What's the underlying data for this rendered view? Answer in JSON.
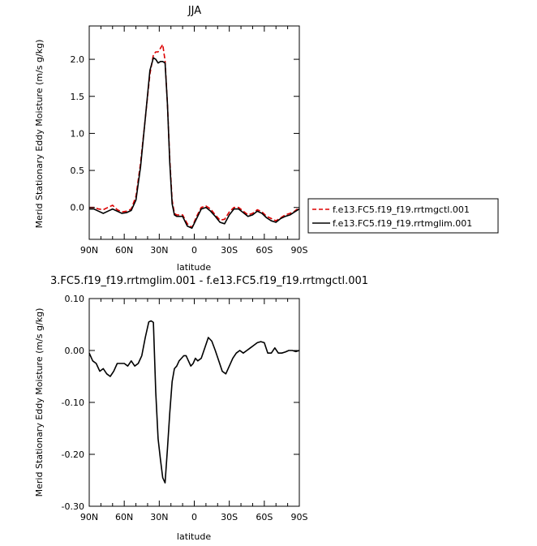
{
  "chart_data": [
    {
      "type": "line",
      "title": "JJA",
      "xlabel": "latitude",
      "ylabel": "Merid Stationary Eddy Moisture (m/s g/kg)",
      "x_tick_labels": [
        "90N",
        "60N",
        "30N",
        "0",
        "30S",
        "60S",
        "90S"
      ],
      "x_tick_values": [
        90,
        60,
        30,
        0,
        -30,
        -60,
        -90
      ],
      "xlim": [
        90,
        -90
      ],
      "ylim": [
        -0.43,
        2.45
      ],
      "y_ticks": [
        0.0,
        0.5,
        1.0,
        1.5,
        2.0
      ],
      "y_tick_labels": [
        "0.0",
        "0.5",
        "1.0",
        "1.5",
        "2.0"
      ],
      "grid": false,
      "legend_position": "right",
      "series": [
        {
          "name": "f.e13.FC5.f19_f19.rrtmgctl.001",
          "style": "dashed",
          "color": "#dd0000",
          "x": [
            90,
            86,
            82,
            78,
            74,
            70,
            66,
            62,
            58,
            54,
            50,
            46,
            42,
            38,
            35,
            33,
            31,
            29,
            27,
            25,
            23,
            21,
            19,
            17,
            15,
            13,
            10,
            6,
            2,
            -2,
            -6,
            -10,
            -14,
            -18,
            -22,
            -26,
            -30,
            -34,
            -38,
            -42,
            -46,
            -50,
            -54,
            -58,
            -62,
            -66,
            -70,
            -74,
            -78,
            -82,
            -86,
            -90
          ],
          "y": [
            0.0,
            0.0,
            -0.02,
            -0.03,
            0.0,
            0.03,
            -0.03,
            -0.06,
            -0.05,
            -0.02,
            0.15,
            0.6,
            1.2,
            1.8,
            2.06,
            2.1,
            2.1,
            2.15,
            2.2,
            1.98,
            1.4,
            0.65,
            0.1,
            -0.08,
            -0.1,
            -0.1,
            -0.1,
            -0.22,
            -0.27,
            -0.12,
            0.0,
            0.02,
            -0.02,
            -0.1,
            -0.17,
            -0.16,
            -0.06,
            0.0,
            0.0,
            -0.05,
            -0.1,
            -0.08,
            -0.03,
            -0.06,
            -0.12,
            -0.15,
            -0.18,
            -0.14,
            -0.1,
            -0.08,
            -0.05,
            0.0
          ]
        },
        {
          "name": "f.e13.FC5.f19_f19.rrtmglim.001",
          "style": "solid",
          "color": "#000000",
          "x": [
            90,
            86,
            82,
            78,
            74,
            70,
            66,
            62,
            58,
            54,
            50,
            46,
            42,
            38,
            35,
            33,
            31,
            29,
            27,
            25,
            23,
            21,
            19,
            17,
            15,
            13,
            10,
            6,
            2,
            -2,
            -6,
            -10,
            -14,
            -18,
            -22,
            -26,
            -30,
            -34,
            -38,
            -42,
            -46,
            -50,
            -54,
            -58,
            -62,
            -66,
            -70,
            -74,
            -78,
            -82,
            -86,
            -90
          ],
          "y": [
            -0.02,
            -0.02,
            -0.05,
            -0.08,
            -0.05,
            -0.02,
            -0.05,
            -0.08,
            -0.07,
            -0.04,
            0.1,
            0.55,
            1.2,
            1.85,
            2.02,
            2.0,
            1.95,
            1.97,
            1.97,
            1.95,
            1.4,
            0.6,
            0.05,
            -0.1,
            -0.12,
            -0.12,
            -0.12,
            -0.25,
            -0.28,
            -0.15,
            -0.02,
            0.0,
            -0.05,
            -0.12,
            -0.2,
            -0.22,
            -0.1,
            -0.02,
            -0.02,
            -0.07,
            -0.12,
            -0.1,
            -0.05,
            -0.08,
            -0.14,
            -0.18,
            -0.2,
            -0.15,
            -0.12,
            -0.1,
            -0.06,
            -0.02
          ]
        }
      ]
    },
    {
      "type": "line",
      "title": "3.FC5.f19_f19.rrtmglim.001 - f.e13.FC5.f19_f19.rrtmgctl.001",
      "xlabel": "latitude",
      "ylabel": "Merid Stationary Eddy Moisture (m/s g/kg)",
      "x_tick_labels": [
        "90N",
        "60N",
        "30N",
        "0",
        "30S",
        "60S",
        "90S"
      ],
      "x_tick_values": [
        90,
        60,
        30,
        0,
        -30,
        -60,
        -90
      ],
      "xlim": [
        90,
        -90
      ],
      "ylim": [
        -0.3,
        0.1
      ],
      "y_ticks": [
        0.1,
        0.0,
        -0.1,
        -0.2,
        -0.3
      ],
      "y_tick_labels": [
        "0.10",
        "0.00",
        "-0.10",
        "-0.20",
        "-0.30"
      ],
      "grid": false,
      "series": [
        {
          "style": "solid",
          "color": "#000000",
          "x": [
            90,
            87,
            84,
            81,
            78,
            75,
            72,
            69,
            66,
            63,
            60,
            57,
            54,
            51,
            48,
            45,
            42,
            39,
            37,
            35,
            33,
            31,
            29,
            27,
            25,
            23,
            21,
            19,
            17,
            15,
            13,
            11,
            9,
            7,
            5,
            3,
            1,
            -1,
            -3,
            -6,
            -9,
            -12,
            -15,
            -18,
            -21,
            -24,
            -27,
            -30,
            -33,
            -36,
            -39,
            -42,
            -45,
            -48,
            -51,
            -54,
            -57,
            -60,
            -63,
            -66,
            -69,
            -72,
            -75,
            -78,
            -81,
            -84,
            -87,
            -90
          ],
          "y": [
            -0.005,
            -0.02,
            -0.025,
            -0.04,
            -0.035,
            -0.045,
            -0.05,
            -0.04,
            -0.025,
            -0.025,
            -0.025,
            -0.03,
            -0.02,
            -0.03,
            -0.025,
            -0.01,
            0.025,
            0.055,
            0.057,
            0.054,
            -0.08,
            -0.17,
            -0.21,
            -0.245,
            -0.255,
            -0.19,
            -0.12,
            -0.06,
            -0.035,
            -0.03,
            -0.02,
            -0.015,
            -0.01,
            -0.01,
            -0.02,
            -0.03,
            -0.025,
            -0.015,
            -0.02,
            -0.015,
            0.005,
            0.025,
            0.018,
            0.0,
            -0.02,
            -0.04,
            -0.045,
            -0.03,
            -0.015,
            -0.005,
            0.0,
            -0.005,
            0.0,
            0.005,
            0.01,
            0.015,
            0.017,
            0.015,
            -0.005,
            -0.005,
            0.005,
            -0.005,
            -0.005,
            -0.003,
            0.0,
            0.0,
            -0.002,
            0.0
          ]
        }
      ]
    }
  ]
}
